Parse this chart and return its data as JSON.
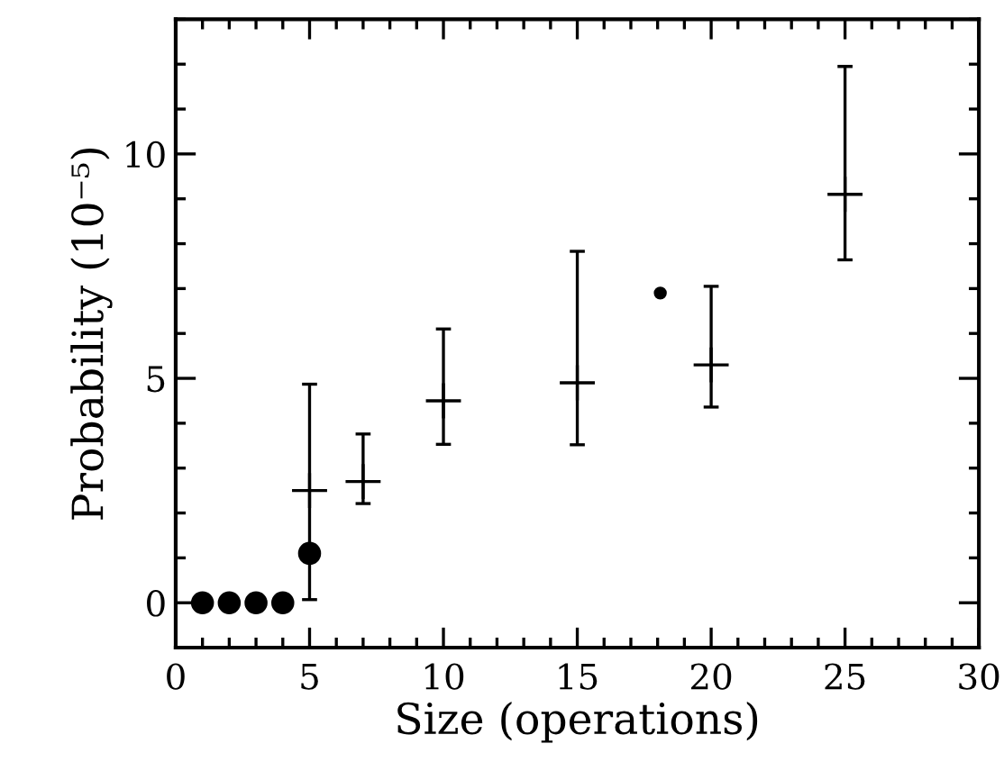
{
  "chart_data": {
    "type": "scatter",
    "xlabel": "Size (operations)",
    "ylabel": "Probability (10⁻⁵)",
    "xlim": [
      0,
      30
    ],
    "ylim": [
      -1,
      13
    ],
    "xticks": [
      0,
      5,
      10,
      15,
      20,
      25,
      30
    ],
    "yticks": [
      0,
      5,
      10
    ],
    "grid": false,
    "legend": false,
    "series": [
      {
        "color": "#000000",
        "marker": "circle",
        "x": [
          1,
          2,
          3,
          4,
          5
        ],
        "values": [
          0,
          0,
          0,
          0,
          1.1
        ]
      },
      {
        "color": "#000000",
        "marker": "cross",
        "x": [
          5,
          7,
          10,
          15,
          20,
          25
        ],
        "values": [
          2.5,
          2.7,
          4.5,
          4.9,
          5.3,
          9.1
        ],
        "errors": [
          [
            0.07,
            4.87
          ],
          [
            2.21,
            3.76
          ],
          [
            3.53,
            6.1
          ],
          [
            3.52,
            7.83
          ],
          [
            4.36,
            7.05
          ],
          [
            7.64,
            11.95
          ]
        ]
      },
      {
        "color": "#000000",
        "marker": "circle",
        "x": [
          18.1
        ],
        "values": [
          6.9
        ]
      }
    ]
  }
}
